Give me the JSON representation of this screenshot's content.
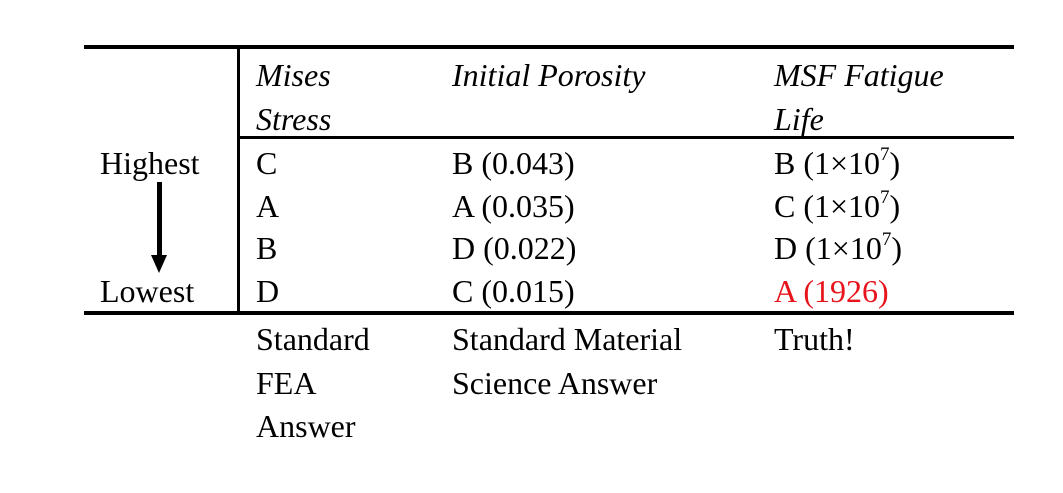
{
  "table": {
    "headers": {
      "mises": [
        "Mises",
        "Stress"
      ],
      "porosity": [
        "Initial Porosity"
      ],
      "msf": [
        "MSF Fatigue",
        "Life"
      ]
    },
    "rank_labels": {
      "highest": "Highest",
      "lowest": "Lowest"
    },
    "rows": [
      {
        "mises": "C",
        "porosity": "B (0.043)",
        "msf_prefix": "B (1×10",
        "msf_exp": "7",
        "msf_suffix": ")"
      },
      {
        "mises": "A",
        "porosity": "A (0.035)",
        "msf_prefix": "C (1×10",
        "msf_exp": "7",
        "msf_suffix": ")"
      },
      {
        "mises": "B",
        "porosity": "D (0.022)",
        "msf_prefix": "D (1×10",
        "msf_exp": "7",
        "msf_suffix": ")"
      },
      {
        "mises": "D",
        "porosity": "C (0.015)",
        "msf": "A (1926)"
      }
    ],
    "footers": {
      "mises": [
        "Standard",
        "FEA",
        "Answer"
      ],
      "porosity": [
        "Standard Material",
        "Science Answer"
      ],
      "msf": [
        "Truth!"
      ]
    }
  },
  "colors": {
    "highlight": "#e8141b",
    "text": "#000000"
  }
}
